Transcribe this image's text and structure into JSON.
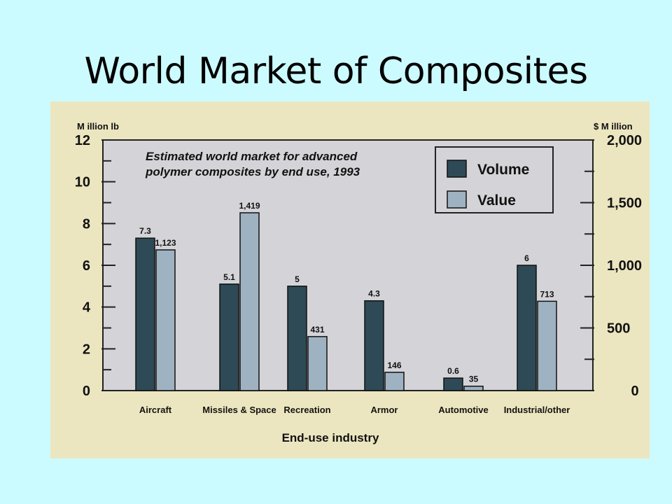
{
  "slide": {
    "title": "World Market of Composites"
  },
  "colors": {
    "background": "#ccfbff",
    "figure_bg": "#ece6c0",
    "plot_bg": "#d4d4d8",
    "volume": "#2e4a56",
    "value": "#9fb2c2"
  },
  "chart_data": {
    "type": "bar",
    "title": "Estimated world market for advanced polymer composites by end use, 1993",
    "title_lines": [
      "Estimated world market for advanced",
      "polymer composites by end use, 1993"
    ],
    "xlabel": "End-use industry",
    "ylabel_left": "M illion lb",
    "ylabel_right": "$ M illion",
    "categories": [
      "Aircraft",
      "Missiles & Space",
      "Recreation",
      "Armor",
      "Automotive",
      "Industrial/other"
    ],
    "series": [
      {
        "name": "Volume",
        "axis": "left",
        "values": [
          7.3,
          5.1,
          5,
          4.3,
          0.6,
          6
        ],
        "labels": [
          "7.3",
          "5.1",
          "5",
          "4.3",
          "0.6",
          "6"
        ]
      },
      {
        "name": "Value",
        "axis": "right",
        "values": [
          1123,
          1419,
          431,
          146,
          35,
          713
        ],
        "labels": [
          "1,123",
          "1,419",
          "431",
          "146",
          "35",
          "713"
        ]
      }
    ],
    "ylim_left": [
      0,
      12
    ],
    "ylim_right": [
      0,
      2000
    ],
    "left_ticks": [
      "0",
      "2",
      "4",
      "6",
      "8",
      "10",
      "12"
    ],
    "right_ticks": [
      "500",
      "1,000",
      "1,500",
      "2,000"
    ],
    "legend_position": "top-right",
    "grid": false
  }
}
